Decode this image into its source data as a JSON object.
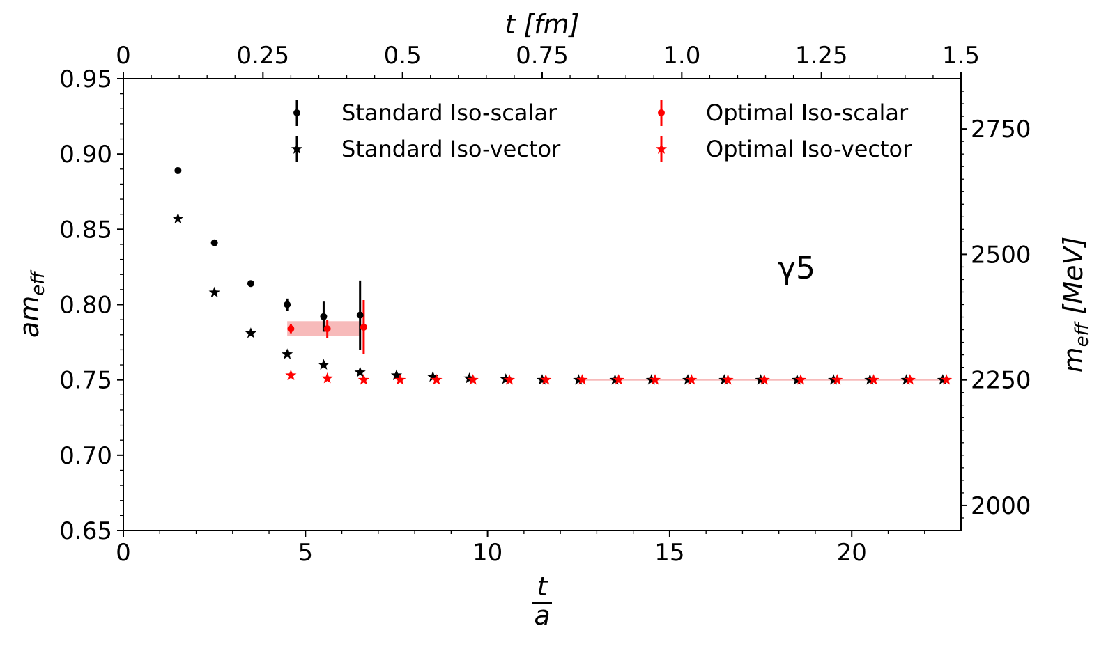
{
  "chart_data": {
    "type": "scatter",
    "annotation": "γ5",
    "axes": {
      "x_bottom": {
        "label_numerator": "t",
        "label_denominator": "a",
        "range": [
          0,
          23.0
        ],
        "ticks": [
          0,
          5,
          10,
          15,
          20
        ],
        "tick_labels": [
          "0",
          "5",
          "10",
          "15",
          "20"
        ]
      },
      "x_top": {
        "label": "t [fm]",
        "range": [
          0,
          1.5
        ],
        "ticks": [
          0,
          0.25,
          0.5,
          0.75,
          1.0,
          1.25,
          1.5
        ],
        "tick_labels": [
          "0",
          "0.25",
          "0.5",
          "0.75",
          "1.0",
          "1.25",
          "1.5"
        ]
      },
      "y_left": {
        "label": "am_eff",
        "label_main": "am",
        "label_sub": "eff",
        "range": [
          0.65,
          0.95
        ],
        "ticks": [
          0.65,
          0.7,
          0.75,
          0.8,
          0.85,
          0.9,
          0.95
        ],
        "tick_labels": [
          "0.65",
          "0.70",
          "0.75",
          "0.80",
          "0.85",
          "0.90",
          "0.95"
        ]
      },
      "y_right": {
        "label": "m_eff [MeV]",
        "label_main": "m",
        "label_sub": "eff",
        "label_unit": " [MeV]",
        "range": [
          1950,
          2850
        ],
        "ticks": [
          2000,
          2250,
          2500,
          2750
        ],
        "tick_labels": [
          "2000",
          "2250",
          "2500",
          "2750"
        ]
      }
    },
    "legend": {
      "placement": "top",
      "entries": [
        {
          "label": "Standard Iso-scalar",
          "marker": "circle",
          "color": "#000000"
        },
        {
          "label": "Standard Iso-vector",
          "marker": "star",
          "color": "#000000"
        },
        {
          "label": "Optimal Iso-scalar",
          "marker": "circle",
          "color": "#ff0000"
        },
        {
          "label": "Optimal Iso-vector",
          "marker": "star",
          "color": "#ff0000"
        }
      ]
    },
    "series": [
      {
        "name": "Standard Iso-scalar",
        "marker": "circle",
        "color": "#000000",
        "points": [
          {
            "x": 1.5,
            "y": 0.889,
            "err": 0.0
          },
          {
            "x": 2.5,
            "y": 0.841,
            "err": 0.0
          },
          {
            "x": 3.5,
            "y": 0.814,
            "err": 0.0
          },
          {
            "x": 4.5,
            "y": 0.8,
            "err": 0.004
          },
          {
            "x": 5.5,
            "y": 0.792,
            "err": 0.01
          },
          {
            "x": 6.5,
            "y": 0.793,
            "err": 0.023
          }
        ]
      },
      {
        "name": "Standard Iso-vector",
        "marker": "star",
        "color": "#000000",
        "points": [
          {
            "x": 1.5,
            "y": 0.857
          },
          {
            "x": 2.5,
            "y": 0.808
          },
          {
            "x": 3.5,
            "y": 0.781
          },
          {
            "x": 4.5,
            "y": 0.767
          },
          {
            "x": 5.5,
            "y": 0.76
          },
          {
            "x": 6.5,
            "y": 0.755
          },
          {
            "x": 7.5,
            "y": 0.753
          },
          {
            "x": 8.5,
            "y": 0.752
          },
          {
            "x": 9.5,
            "y": 0.751
          },
          {
            "x": 10.5,
            "y": 0.7505
          },
          {
            "x": 11.5,
            "y": 0.75
          },
          {
            "x": 12.5,
            "y": 0.75
          },
          {
            "x": 13.5,
            "y": 0.75
          },
          {
            "x": 14.5,
            "y": 0.75
          },
          {
            "x": 15.5,
            "y": 0.75
          },
          {
            "x": 16.5,
            "y": 0.75
          },
          {
            "x": 17.5,
            "y": 0.75
          },
          {
            "x": 18.5,
            "y": 0.75
          },
          {
            "x": 19.5,
            "y": 0.75
          },
          {
            "x": 20.5,
            "y": 0.75
          },
          {
            "x": 21.5,
            "y": 0.75
          },
          {
            "x": 22.5,
            "y": 0.75
          }
        ]
      },
      {
        "name": "Optimal Iso-scalar",
        "marker": "circle",
        "color": "#ff0000",
        "points": [
          {
            "x": 4.6,
            "y": 0.784,
            "err": 0.003
          },
          {
            "x": 5.6,
            "y": 0.784,
            "err": 0.006
          },
          {
            "x": 6.6,
            "y": 0.785,
            "err": 0.018
          }
        ]
      },
      {
        "name": "Optimal Iso-vector",
        "marker": "star",
        "color": "#ff0000",
        "points": [
          {
            "x": 4.6,
            "y": 0.753
          },
          {
            "x": 5.6,
            "y": 0.751
          },
          {
            "x": 6.6,
            "y": 0.75
          },
          {
            "x": 7.6,
            "y": 0.75
          },
          {
            "x": 8.6,
            "y": 0.75
          },
          {
            "x": 9.6,
            "y": 0.75
          },
          {
            "x": 10.6,
            "y": 0.75
          },
          {
            "x": 11.6,
            "y": 0.75
          },
          {
            "x": 12.6,
            "y": 0.75
          },
          {
            "x": 13.6,
            "y": 0.75
          },
          {
            "x": 14.6,
            "y": 0.75
          },
          {
            "x": 15.6,
            "y": 0.75
          },
          {
            "x": 16.6,
            "y": 0.75
          },
          {
            "x": 17.6,
            "y": 0.75
          },
          {
            "x": 18.6,
            "y": 0.75
          },
          {
            "x": 19.6,
            "y": 0.75
          },
          {
            "x": 20.6,
            "y": 0.75
          },
          {
            "x": 21.6,
            "y": 0.75
          },
          {
            "x": 22.6,
            "y": 0.75
          }
        ]
      }
    ],
    "fit_bands": [
      {
        "series": "Optimal Iso-scalar",
        "x_range": [
          4.5,
          6.5
        ],
        "y_range": [
          0.779,
          0.789
        ],
        "color": "#f4a3a3"
      },
      {
        "series": "Optimal Iso-vector",
        "x_range": [
          12.5,
          22.5
        ],
        "y_range": [
          0.7495,
          0.7505
        ],
        "color": "#f4a3a3"
      }
    ],
    "grid": false
  }
}
